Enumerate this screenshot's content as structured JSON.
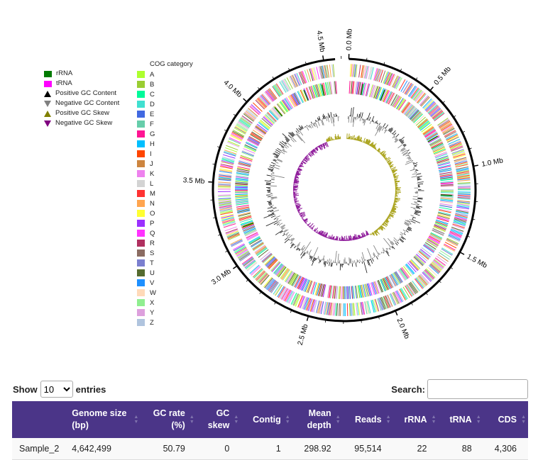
{
  "legend": {
    "items": [
      {
        "label": "rRNA",
        "color": "#007a00",
        "shape": "square"
      },
      {
        "label": "tRNA",
        "color": "#ff00ff",
        "shape": "square"
      },
      {
        "label": "Positive GC Content",
        "color": "#000000",
        "shape": "triangle-up"
      },
      {
        "label": "Negative GC Content",
        "color": "#808080",
        "shape": "triangle-down"
      },
      {
        "label": "Positive GC Skew",
        "color": "#808000",
        "shape": "triangle-up"
      },
      {
        "label": "Negative GC Skew",
        "color": "#800080",
        "shape": "triangle-down"
      }
    ]
  },
  "cog": {
    "title": "COG category",
    "items": [
      {
        "label": "A",
        "color": "#adff2f"
      },
      {
        "label": "B",
        "color": "#9acd32"
      },
      {
        "label": "C",
        "color": "#00fa9a"
      },
      {
        "label": "D",
        "color": "#40e0d0"
      },
      {
        "label": "E",
        "color": "#4169e1"
      },
      {
        "label": "F",
        "color": "#66cdaa"
      },
      {
        "label": "G",
        "color": "#ff1493"
      },
      {
        "label": "H",
        "color": "#00bfff"
      },
      {
        "label": "I",
        "color": "#ff4500"
      },
      {
        "label": "J",
        "color": "#cd853f"
      },
      {
        "label": "K",
        "color": "#ee82ee"
      },
      {
        "label": "L",
        "color": "#d3d3d3"
      },
      {
        "label": "M",
        "color": "#ff3333"
      },
      {
        "label": "N",
        "color": "#ffa54f"
      },
      {
        "label": "O",
        "color": "#ffff33"
      },
      {
        "label": "P",
        "color": "#9b30ff"
      },
      {
        "label": "Q",
        "color": "#ff33ff"
      },
      {
        "label": "R",
        "color": "#b03060"
      },
      {
        "label": "S",
        "color": "#8b6c62"
      },
      {
        "label": "T",
        "color": "#7b7fcf"
      },
      {
        "label": "U",
        "color": "#556b2f"
      },
      {
        "label": "V",
        "color": "#1e90ff"
      },
      {
        "label": "W",
        "color": "#ffdab9"
      },
      {
        "label": "X",
        "color": "#90ee90"
      },
      {
        "label": "Y",
        "color": "#dda0dd"
      },
      {
        "label": "Z",
        "color": "#b0c4de"
      }
    ]
  },
  "circos": {
    "tick_labels": [
      "0.0 Mb",
      "0.5 Mb",
      "1.0 Mb",
      "1.5 Mb",
      "2.0 Mb",
      "2.5 Mb",
      "3.0 Mb",
      "3.5 Mb",
      "4.0 Mb",
      "4.5 Mb"
    ],
    "genome_size_mb": 4.642499
  },
  "controls": {
    "show_label": "Show",
    "entries_value": "10",
    "entries_label": "entries",
    "search_label": "Search:"
  },
  "table": {
    "headers": [
      {
        "line1": "",
        "line2": ""
      },
      {
        "line1": "Genome size",
        "line2": "(bp)"
      },
      {
        "line1": "GC rate",
        "line2": "(%)"
      },
      {
        "line1": "GC",
        "line2": "skew"
      },
      {
        "line1": "Contig",
        "line2": ""
      },
      {
        "line1": "Mean",
        "line2": "depth"
      },
      {
        "line1": "Reads",
        "line2": ""
      },
      {
        "line1": "rRNA",
        "line2": ""
      },
      {
        "line1": "tRNA",
        "line2": ""
      },
      {
        "line1": "CDS",
        "line2": ""
      }
    ],
    "rows": [
      [
        "Sample_2",
        "4,642,499",
        "50.79",
        "0",
        "1",
        "298.92",
        "95,514",
        "22",
        "88",
        "4,306"
      ]
    ],
    "header_color": "#4b3588"
  }
}
